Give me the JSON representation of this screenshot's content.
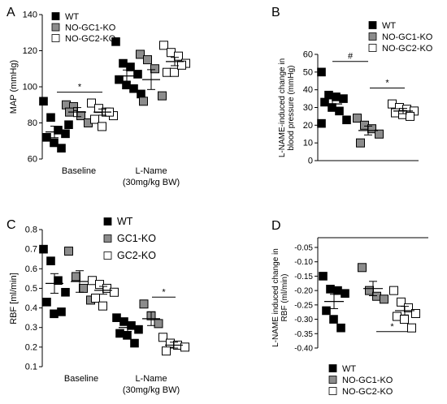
{
  "chart_data": [
    {
      "panel": "A",
      "type": "scatter",
      "ylabel": "MAP (mmHg)",
      "ylim": [
        60,
        140
      ],
      "yticks": [
        60,
        80,
        100,
        120,
        140
      ],
      "legend": [
        "WT",
        "NO-GC1-KO",
        "NO-GC2-KO"
      ],
      "groups": [
        "Baseline",
        "L-Name"
      ],
      "group_sublabels": [
        "",
        "(30mg/kg BW)"
      ],
      "series": [
        {
          "name": "WT",
          "marker": "filled-black",
          "groups": [
            [
              92,
              83,
              76,
              74,
              72,
              69,
              66,
              79
            ],
            [
              125,
              113,
              111,
              107,
              104,
              101,
              99,
              96
            ]
          ],
          "mean": [
            75,
            106
          ],
          "sem": [
            3.2,
            3.3
          ]
        },
        {
          "name": "NO-GC1-KO",
          "marker": "filled-gray",
          "groups": [
            [
              90,
              89,
              84,
              80,
              86
            ],
            [
              118,
              115,
              110,
              95,
              92
            ]
          ],
          "mean": [
            86,
            104
          ],
          "sem": [
            2.5,
            5.5
          ]
        },
        {
          "name": "NO-GC2-KO",
          "marker": "open",
          "groups": [
            [
              91,
              88,
              86,
              84,
              82,
              78,
              86
            ],
            [
              123,
              119,
              117,
              113,
              108,
              108,
              112
            ]
          ],
          "mean": [
            86,
            114
          ],
          "sem": [
            1.7,
            2.3
          ]
        }
      ],
      "annotations": [
        {
          "text": "*",
          "between": "WT–NO-GC2-KO baseline"
        }
      ]
    },
    {
      "panel": "B",
      "type": "scatter",
      "ylabel": "L-NAME-induced change in blood pressure (mmHg)",
      "ylim": [
        0,
        60
      ],
      "yticks": [
        0,
        10,
        20,
        30,
        40,
        50,
        60
      ],
      "legend": [
        "WT",
        "NO-GC1-KO",
        "NO-GC2-KO"
      ],
      "series": [
        {
          "name": "WT",
          "marker": "filled-black",
          "values": [
            50,
            37,
            36,
            35,
            33,
            30,
            28,
            23,
            21
          ],
          "mean": 32,
          "sem": 3
        },
        {
          "name": "NO-GC1-KO",
          "marker": "filled-gray",
          "values": [
            24,
            20,
            18,
            15,
            10
          ],
          "mean": 17,
          "sem": 2.5
        },
        {
          "name": "NO-GC2-KO",
          "marker": "open",
          "values": [
            32,
            30,
            29,
            28,
            27,
            26,
            25
          ],
          "mean": 28,
          "sem": 1.5
        }
      ],
      "annotations": [
        {
          "text": "#",
          "between": "WT–NO-GC1-KO"
        },
        {
          "text": "*",
          "between": "NO-GC1-KO–NO-GC2-KO"
        }
      ]
    },
    {
      "panel": "C",
      "type": "scatter",
      "ylabel": "RBF [ml/min]",
      "ylim": [
        0.1,
        0.8
      ],
      "yticks": [
        0.1,
        0.2,
        0.3,
        0.4,
        0.5,
        0.6,
        0.7,
        0.8
      ],
      "legend": [
        "WT",
        "GC1-KO",
        "GC2-KO"
      ],
      "groups": [
        "Baseline",
        "L-Name"
      ],
      "group_sublabels": [
        "",
        "(30mg/kg BW)"
      ],
      "series": [
        {
          "name": "WT",
          "marker": "filled-black",
          "groups": [
            [
              0.7,
              0.64,
              0.54,
              0.48,
              0.43,
              0.37,
              0.38
            ],
            [
              0.35,
              0.33,
              0.31,
              0.29,
              0.27,
              0.26,
              0.22
            ]
          ],
          "mean": [
            0.525,
            0.3
          ],
          "sem": [
            0.05,
            0.02
          ]
        },
        {
          "name": "GC1-KO",
          "marker": "filled-gray",
          "groups": [
            [
              0.69,
              0.56,
              0.5,
              0.44
            ],
            [
              0.42,
              0.36,
              0.32
            ]
          ],
          "mean": [
            0.535,
            0.345
          ],
          "sem": [
            0.055,
            0.035
          ]
        },
        {
          "name": "GC2-KO",
          "marker": "open",
          "groups": [
            [
              0.54,
              0.52,
              0.5,
              0.48,
              0.45,
              0.41
            ],
            [
              0.25,
              0.22,
              0.21,
              0.2,
              0.18
            ]
          ],
          "mean": [
            0.49,
            0.21
          ],
          "sem": [
            0.02,
            0.015
          ]
        }
      ],
      "annotations": [
        {
          "text": "*",
          "between": "GC1-KO–GC2-KO L-Name"
        }
      ]
    },
    {
      "panel": "D",
      "type": "scatter",
      "ylabel": "L-NAME induced change in RBF (ml/min)",
      "ylim": [
        -0.4,
        -0.05
      ],
      "yticks": [
        -0.05,
        -0.1,
        -0.15,
        -0.2,
        -0.25,
        -0.3,
        -0.35,
        -0.4
      ],
      "ytick_labels": [
        "-0.05",
        "-0.10",
        "-0.15",
        "-0.20",
        "-0.25",
        "-0.30",
        "-0.35",
        "-0.40"
      ],
      "legend": [
        "WT",
        "NO-GC1-KO",
        "NO-GC2-KO"
      ],
      "series": [
        {
          "name": "WT",
          "marker": "filled-black",
          "values": [
            -0.15,
            -0.195,
            -0.2,
            -0.21,
            -0.27,
            -0.3,
            -0.33
          ],
          "mean": -0.238,
          "sem": 0.025
        },
        {
          "name": "NO-GC1-KO",
          "marker": "filled-gray",
          "values": [
            -0.12,
            -0.2,
            -0.22,
            -0.23
          ],
          "mean": -0.193,
          "sem": 0.025
        },
        {
          "name": "NO-GC2-KO",
          "marker": "open",
          "values": [
            -0.2,
            -0.24,
            -0.26,
            -0.28,
            -0.29,
            -0.3,
            -0.33
          ],
          "mean": -0.27,
          "sem": 0.015
        }
      ],
      "annotations": [
        {
          "text": "*",
          "between": "WT–NO-GC2-KO"
        }
      ]
    }
  ],
  "panel_labels": [
    "A",
    "B",
    "C",
    "D"
  ],
  "colors": {
    "filled-black": "#000000",
    "filled-gray": "#8c8c8c",
    "open": "#ffffff",
    "stroke": "#000000"
  }
}
